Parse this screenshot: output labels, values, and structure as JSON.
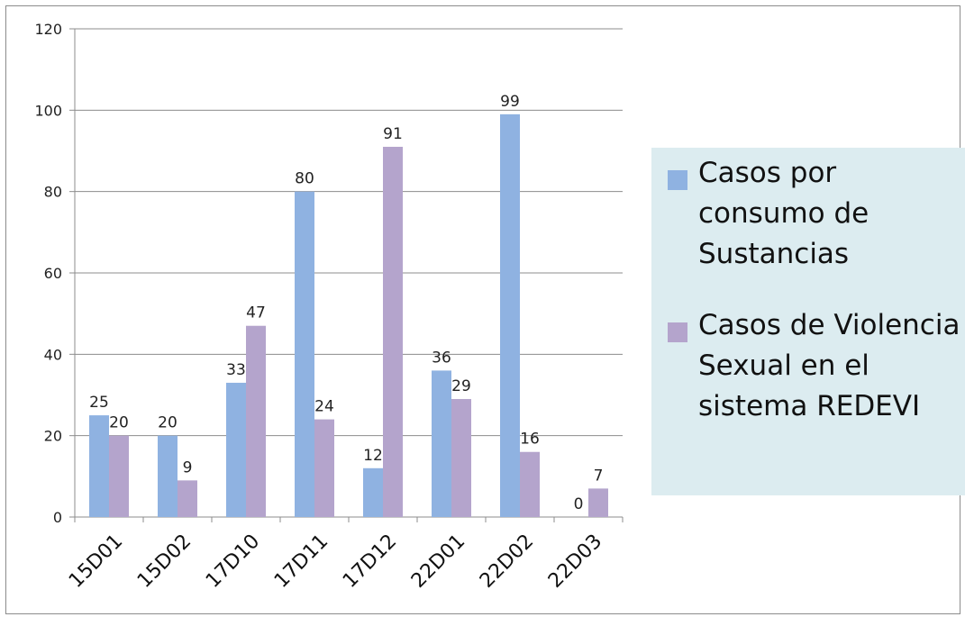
{
  "chart_data": {
    "type": "bar",
    "categories": [
      "15D01",
      "15D02",
      "17D10",
      "17D11",
      "17D12",
      "22D01",
      "22D02",
      "22D03"
    ],
    "series": [
      {
        "name": "Casos por consumo de Sustancias",
        "color": "#8fb2e1",
        "values": [
          25,
          20,
          33,
          80,
          12,
          36,
          99,
          0
        ]
      },
      {
        "name": "Casos de Violencia Sexual en el sistema REDEVI",
        "color": "#b4a4cc",
        "values": [
          20,
          9,
          47,
          24,
          91,
          29,
          16,
          7
        ]
      }
    ],
    "ylim": [
      0,
      120
    ],
    "yticks": [
      0,
      20,
      40,
      60,
      80,
      100,
      120
    ],
    "grid": true,
    "legend_position": "right",
    "data_labels": true
  }
}
